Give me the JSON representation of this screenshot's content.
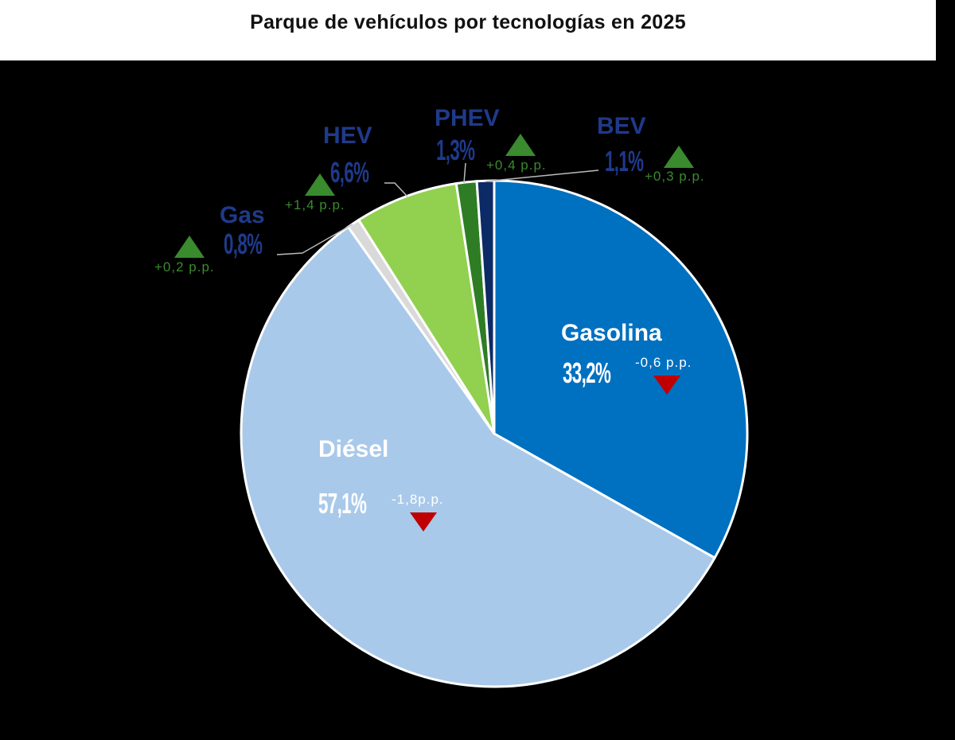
{
  "chart_data": {
    "type": "pie",
    "title": "Parque de vehículos por tecnologías en 2025",
    "start": "top",
    "direction": "clockwise",
    "slices": [
      {
        "label": "Gasolina",
        "value": 33.2,
        "value_label": "33,2%",
        "change": "-0,6 p.p.",
        "trend": "down",
        "color": "#0070c0"
      },
      {
        "label": "Diésel",
        "value": 57.1,
        "value_label": "57,1%",
        "change": "-1,8p.p.",
        "trend": "down",
        "color": "#a9c9ea"
      },
      {
        "label": "Gas",
        "value": 0.8,
        "value_label": "0,8%",
        "change": "+0,2 p.p.",
        "trend": "up",
        "color": "#d9d9d9"
      },
      {
        "label": "HEV",
        "value": 6.6,
        "value_label": "6,6%",
        "change": "+1,4 p.p.",
        "trend": "up",
        "color": "#92d050"
      },
      {
        "label": "PHEV",
        "value": 1.3,
        "value_label": "1,3%",
        "change": "+0,4 p.p.",
        "trend": "up",
        "color": "#2e7d24"
      },
      {
        "label": "BEV",
        "value": 1.1,
        "value_label": "1,1%",
        "change": "+0,3 p.p.",
        "trend": "up",
        "color": "#0c2a66"
      }
    ]
  }
}
